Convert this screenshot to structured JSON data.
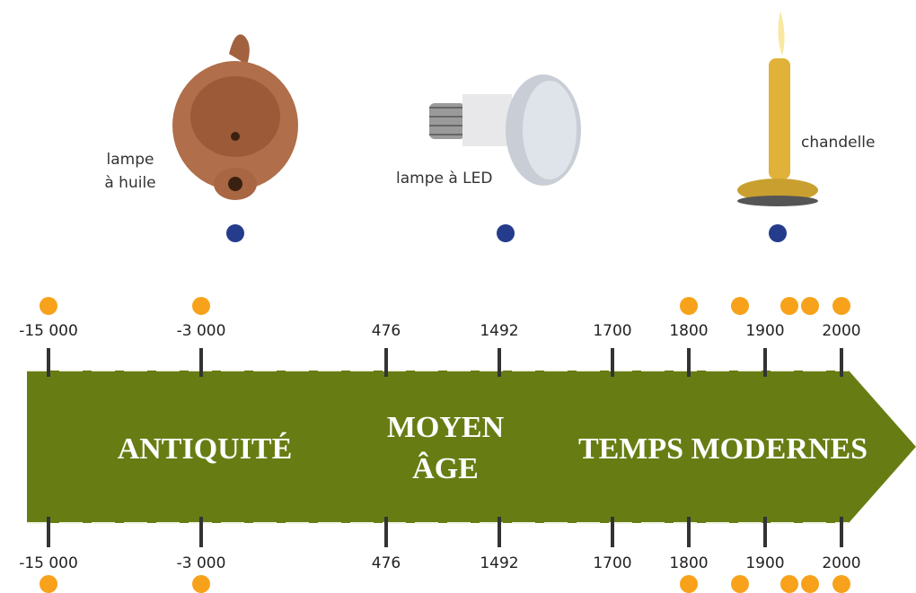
{
  "items": [
    {
      "label": [
        "lampe",
        "à huile"
      ]
    },
    {
      "label": [
        "lampe à LED"
      ]
    },
    {
      "label": [
        "chandelle"
      ]
    }
  ],
  "ticks": [
    "-15 000",
    "-3 000",
    "476",
    "1492",
    "1700",
    "1800",
    "1900",
    "2000"
  ],
  "periods": [
    [
      "ANTIQUITÉ"
    ],
    [
      "MOYEN",
      "ÂGE"
    ],
    [
      "TEMPS MODERNES"
    ]
  ]
}
